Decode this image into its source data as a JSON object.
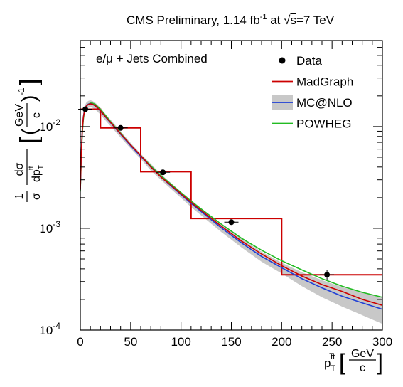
{
  "chart_data": {
    "type": "line",
    "title": {
      "prefix": "CMS Preliminary, 1.14 fb",
      "lumi_sup": "-1",
      "mid": " at ",
      "sqrt_s": "s",
      "suffix": "=7 TeV"
    },
    "annotation": "e/μ + Jets Combined",
    "xlabel": {
      "symbol": "p",
      "sub": "T",
      "sup": "t̅t",
      "unit_num": "GeV",
      "unit_den": "c"
    },
    "ylabel": {
      "frac1_num": "1",
      "frac1_den": "σ",
      "frac2_num": "dσ",
      "frac2_den_symbol": "dp",
      "frac2_den_sub": "T",
      "frac2_den_sup": "t̅t",
      "unit_num": "GeV",
      "unit_den": "c",
      "unit_exp": "-1"
    },
    "x_ticks": [
      "0",
      "50",
      "100",
      "150",
      "200",
      "250",
      "300"
    ],
    "y_ticks": [
      {
        "base": "10",
        "exp": "-4",
        "value": 0.0001
      },
      {
        "base": "10",
        "exp": "-3",
        "value": 0.001
      },
      {
        "base": "10",
        "exp": "-2",
        "value": 0.01
      }
    ],
    "xlim": [
      0,
      300
    ],
    "ylim": [
      0.0001,
      0.07
    ],
    "y_scale": "log",
    "grid": false,
    "legend_position": "top-right",
    "legend": [
      {
        "label": "Data",
        "style": "marker",
        "color": "#000000"
      },
      {
        "label": "MadGraph",
        "style": "line",
        "color": "#cc0000"
      },
      {
        "label": "MC@NLO",
        "style": "band-line",
        "color": "#1f3fd6",
        "band": "#c8c8c8"
      },
      {
        "label": "POWHEG",
        "style": "line",
        "color": "#22bb22"
      }
    ],
    "data_points": [
      {
        "x": 5,
        "y": 0.0148,
        "err": 0.0006
      },
      {
        "x": 40,
        "y": 0.0097,
        "err": 0.0004
      },
      {
        "x": 82,
        "y": 0.00355,
        "err": 0.00015
      },
      {
        "x": 150,
        "y": 0.00115,
        "err": 6e-05
      },
      {
        "x": 245,
        "y": 0.00035,
        "err": 4e-05
      }
    ],
    "histogram": {
      "name": "MadGraph",
      "bin_edges": [
        0,
        20,
        60,
        110,
        200,
        300
      ],
      "values": [
        0.0148,
        0.0097,
        0.0036,
        0.00125,
        0.00035
      ]
    },
    "series": [
      {
        "name": "MadGraph",
        "x": [
          0,
          1,
          2,
          3,
          4,
          5,
          6,
          8,
          10,
          12,
          15,
          20,
          25,
          30,
          40,
          50,
          60,
          70,
          80,
          90,
          100,
          110,
          120,
          140,
          160,
          180,
          200,
          220,
          240,
          260,
          280,
          300
        ],
        "y": [
          0.0024,
          0.0055,
          0.0092,
          0.0123,
          0.014,
          0.0152,
          0.0159,
          0.0165,
          0.0167,
          0.0166,
          0.016,
          0.0143,
          0.0125,
          0.011,
          0.0085,
          0.0066,
          0.0052,
          0.004,
          0.0032,
          0.00265,
          0.00218,
          0.0018,
          0.0015,
          0.00105,
          0.00075,
          0.00056,
          0.00043,
          0.00034,
          0.00028,
          0.00024,
          0.0002,
          0.000175
        ]
      },
      {
        "name": "MC@NLO",
        "x": [
          0,
          1,
          2,
          3,
          4,
          5,
          6,
          8,
          10,
          12,
          15,
          20,
          25,
          30,
          40,
          50,
          60,
          70,
          80,
          90,
          100,
          110,
          120,
          140,
          160,
          180,
          200,
          220,
          240,
          260,
          280,
          300
        ],
        "y": [
          0.0024,
          0.0056,
          0.0094,
          0.0125,
          0.0142,
          0.0153,
          0.016,
          0.0166,
          0.0168,
          0.0166,
          0.0159,
          0.0142,
          0.0124,
          0.0109,
          0.0084,
          0.0065,
          0.0051,
          0.004,
          0.0032,
          0.00262,
          0.00214,
          0.00176,
          0.00146,
          0.00101,
          0.00072,
          0.00053,
          0.00041,
          0.00032,
          0.00026,
          0.000215,
          0.000185,
          0.00016
        ],
        "band_lo": [
          0.0022,
          0.0051,
          0.0086,
          0.0115,
          0.0131,
          0.0141,
          0.0148,
          0.0153,
          0.0155,
          0.0153,
          0.0147,
          0.0131,
          0.0115,
          0.0101,
          0.0078,
          0.0061,
          0.0048,
          0.0037,
          0.003,
          0.00244,
          0.00199,
          0.00162,
          0.00134,
          0.00092,
          0.00065,
          0.00047,
          0.00036,
          0.00027,
          0.00021,
          0.00017,
          0.00014,
          0.000115
        ],
        "band_hi": [
          0.0026,
          0.0061,
          0.0102,
          0.0135,
          0.0153,
          0.0165,
          0.0172,
          0.0179,
          0.0181,
          0.0179,
          0.0171,
          0.0153,
          0.0133,
          0.0117,
          0.009,
          0.0069,
          0.0054,
          0.0043,
          0.0034,
          0.0028,
          0.00229,
          0.0019,
          0.00158,
          0.0011,
          0.00079,
          0.00059,
          0.00046,
          0.00037,
          0.00031,
          0.000265,
          0.000235,
          0.00021
        ]
      },
      {
        "name": "POWHEG",
        "x": [
          0,
          1,
          2,
          3,
          4,
          5,
          6,
          8,
          10,
          12,
          15,
          20,
          25,
          30,
          40,
          50,
          60,
          70,
          80,
          90,
          100,
          110,
          120,
          140,
          160,
          180,
          200,
          220,
          240,
          260,
          280,
          300
        ],
        "y": [
          0.0023,
          0.005,
          0.0086,
          0.0118,
          0.0138,
          0.015,
          0.0158,
          0.0166,
          0.017,
          0.017,
          0.0165,
          0.0148,
          0.0129,
          0.0112,
          0.0086,
          0.0066,
          0.0052,
          0.0041,
          0.0033,
          0.00272,
          0.00224,
          0.00185,
          0.00155,
          0.0011,
          0.0008,
          0.00061,
          0.00048,
          0.00039,
          0.00032,
          0.00027,
          0.000235,
          0.00021
        ]
      }
    ]
  }
}
